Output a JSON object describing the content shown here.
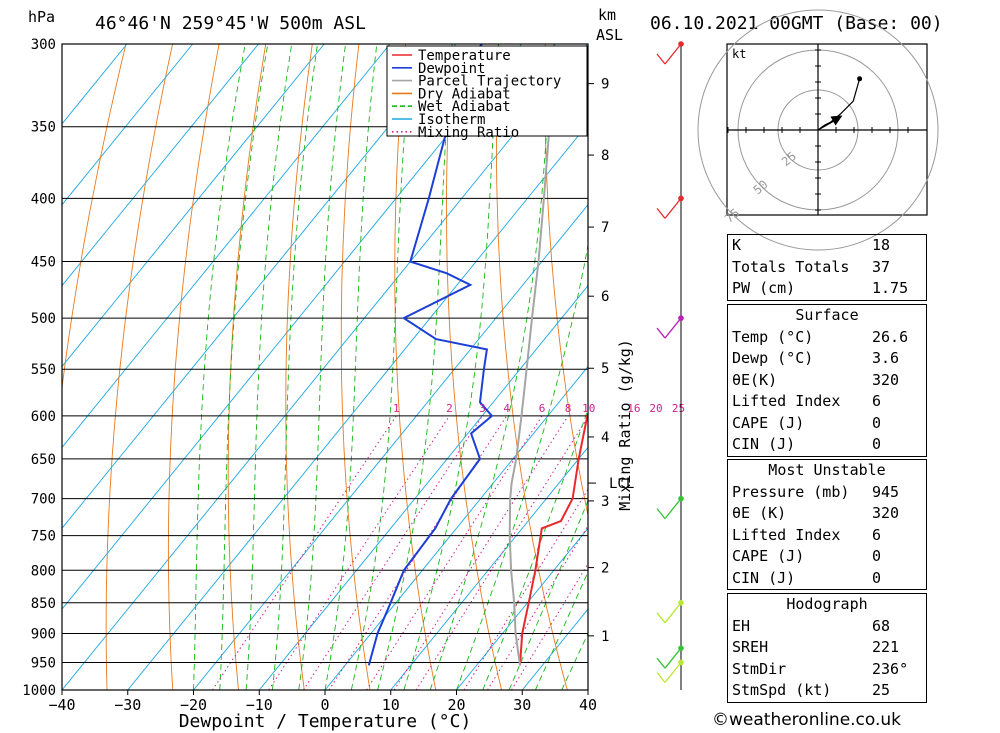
{
  "header": {
    "units_hpa": "hPa",
    "location": "46°46'N 259°45'W 500m ASL",
    "km_label": "km",
    "asl_label": "ASL",
    "datetime": "06.10.2021 00GMT (Base: 00)"
  },
  "chart_data": {
    "type": "line",
    "title": "",
    "xlabel": "Dewpoint / Temperature (°C)",
    "ylabel": "hPa",
    "secondary_ylabel": "Mixing Ratio (g/kg)",
    "xlim": [
      -40,
      40
    ],
    "ylim": [
      1000,
      300
    ],
    "pressure_ticks": [
      300,
      350,
      400,
      450,
      500,
      550,
      600,
      650,
      700,
      750,
      800,
      850,
      900,
      950,
      1000
    ],
    "x_ticks": [
      -40,
      -30,
      -20,
      -10,
      0,
      10,
      20,
      30,
      40
    ],
    "x_tick_labels": [
      "−40",
      "−30",
      "−20",
      "−10",
      "0",
      "10",
      "20",
      "30",
      "40"
    ],
    "km_ticks": [
      {
        "label": "1",
        "p": 904
      },
      {
        "label": "2",
        "p": 796
      },
      {
        "label": "3",
        "p": 703
      },
      {
        "label": "4",
        "p": 624
      },
      {
        "label": "5",
        "p": 549
      },
      {
        "label": "6",
        "p": 480
      },
      {
        "label": "7",
        "p": 422
      },
      {
        "label": "8",
        "p": 369
      },
      {
        "label": "9",
        "p": 323
      }
    ],
    "lcl": {
      "label": "LCL",
      "p": 680
    },
    "mixing_ratio_labels": [
      "1",
      "2",
      "3",
      "4",
      "6",
      "8",
      "10",
      "16",
      "20",
      "25"
    ],
    "mixing_ratio_values": [
      1,
      2,
      3,
      4,
      6,
      8,
      10,
      16,
      20,
      25
    ],
    "legend": [
      {
        "name": "Temperature",
        "color": "#e8282d",
        "style": "solid"
      },
      {
        "name": "Dewpoint",
        "color": "#1c3fd6",
        "style": "solid"
      },
      {
        "name": "Parcel Trajectory",
        "color": "#a5a5a5",
        "style": "solid"
      },
      {
        "name": "Dry Adiabat",
        "color": "#e87a1e",
        "style": "solid"
      },
      {
        "name": "Wet Adiabat",
        "color": "#16b816",
        "style": "dashed"
      },
      {
        "name": "Isotherm",
        "color": "#1da7e3",
        "style": "solid"
      },
      {
        "name": "Mixing Ratio",
        "color": "#d0218f",
        "style": "dotted"
      }
    ],
    "legend_position": "top-right",
    "series": [
      {
        "name": "Temperature",
        "color": "#e8282d",
        "points": [
          {
            "p": 955,
            "t": 26.6
          },
          {
            "p": 900,
            "t": 23.0
          },
          {
            "p": 850,
            "t": 20.2
          },
          {
            "p": 800,
            "t": 17.2
          },
          {
            "p": 740,
            "t": 13.0
          },
          {
            "p": 730,
            "t": 15.0
          },
          {
            "p": 700,
            "t": 14.0
          },
          {
            "p": 650,
            "t": 10.0
          },
          {
            "p": 600,
            "t": 6.0
          },
          {
            "p": 590,
            "t": 5.5
          },
          {
            "p": 560,
            "t": 2.0
          },
          {
            "p": 530,
            "t": 0.5
          },
          {
            "p": 500,
            "t": -1.5
          },
          {
            "p": 470,
            "t": -4.5
          },
          {
            "p": 460,
            "t": -4.5
          },
          {
            "p": 450,
            "t": -3.5
          },
          {
            "p": 400,
            "t": -10.0
          },
          {
            "p": 350,
            "t": -19.0
          },
          {
            "p": 310,
            "t": -27.0
          },
          {
            "p": 300,
            "t": -28.0
          }
        ]
      },
      {
        "name": "Dewpoint",
        "color": "#1c3fd6",
        "points": [
          {
            "p": 955,
            "t": 3.6
          },
          {
            "p": 900,
            "t": 1.0
          },
          {
            "p": 850,
            "t": -0.8
          },
          {
            "p": 800,
            "t": -2.8
          },
          {
            "p": 740,
            "t": -3.2
          },
          {
            "p": 700,
            "t": -4.5
          },
          {
            "p": 650,
            "t": -5.0
          },
          {
            "p": 620,
            "t": -9.5
          },
          {
            "p": 600,
            "t": -8.5
          },
          {
            "p": 585,
            "t": -12.0
          },
          {
            "p": 550,
            "t": -15.5
          },
          {
            "p": 530,
            "t": -17.5
          },
          {
            "p": 520,
            "t": -26.5
          },
          {
            "p": 500,
            "t": -34.0
          },
          {
            "p": 470,
            "t": -28.0
          },
          {
            "p": 460,
            "t": -33.0
          },
          {
            "p": 450,
            "t": -40.0
          },
          {
            "p": 400,
            "t": -45.0
          },
          {
            "p": 350,
            "t": -51.0
          },
          {
            "p": 320,
            "t": -56.5
          },
          {
            "p": 300,
            "t": -56.0
          }
        ]
      },
      {
        "name": "Parcel Trajectory",
        "color": "#a5a5a5",
        "points": [
          {
            "p": 955,
            "t": 26.6
          },
          {
            "p": 900,
            "t": 22.0
          },
          {
            "p": 850,
            "t": 18.0
          },
          {
            "p": 800,
            "t": 13.5
          },
          {
            "p": 750,
            "t": 9.0
          },
          {
            "p": 700,
            "t": 4.5
          },
          {
            "p": 680,
            "t": 2.8
          },
          {
            "p": 650,
            "t": 0.5
          },
          {
            "p": 600,
            "t": -4.0
          },
          {
            "p": 550,
            "t": -9.0
          },
          {
            "p": 500,
            "t": -14.5
          },
          {
            "p": 450,
            "t": -20.5
          },
          {
            "p": 400,
            "t": -27.5
          },
          {
            "p": 350,
            "t": -35.5
          },
          {
            "p": 300,
            "t": -45.0
          }
        ]
      }
    ]
  },
  "wind_profile": {
    "markers": [
      {
        "p": 300,
        "color": "#e8282d"
      },
      {
        "p": 400,
        "color": "#e8282d"
      },
      {
        "p": 500,
        "color": "#b820b8"
      },
      {
        "p": 700,
        "color": "#33c433"
      },
      {
        "p": 850,
        "color": "#b8e830"
      },
      {
        "p": 925,
        "color": "#33c433"
      },
      {
        "p": 950,
        "color": "#b8e830"
      }
    ]
  },
  "hodograph": {
    "unit": "kt",
    "ring_labels": [
      "25",
      "50",
      "75"
    ],
    "points": [
      [
        0,
        0
      ],
      [
        4,
        3
      ],
      [
        8,
        5
      ],
      [
        14,
        10
      ],
      [
        22,
        18
      ],
      [
        26,
        32
      ]
    ],
    "storm_motion": [
      8,
      8
    ]
  },
  "indices": {
    "rows": [
      {
        "label": "K",
        "value": "18"
      },
      {
        "label": "Totals Totals",
        "value": "37"
      },
      {
        "label": "PW (cm)",
        "value": "1.75"
      }
    ]
  },
  "surface": {
    "title": "Surface",
    "rows": [
      {
        "label": "Temp (°C)",
        "value": "26.6"
      },
      {
        "label": "Dewp (°C)",
        "value": "3.6"
      },
      {
        "label": "θE(K)",
        "value": "320"
      },
      {
        "label": "Lifted Index",
        "value": "6"
      },
      {
        "label": "CAPE (J)",
        "value": "0"
      },
      {
        "label": "CIN (J)",
        "value": "0"
      }
    ]
  },
  "most_unstable": {
    "title": "Most Unstable",
    "rows": [
      {
        "label": "Pressure (mb)",
        "value": "945"
      },
      {
        "label": "θE (K)",
        "value": "320"
      },
      {
        "label": "Lifted Index",
        "value": "6"
      },
      {
        "label": "CAPE (J)",
        "value": "0"
      },
      {
        "label": "CIN (J)",
        "value": "0"
      }
    ]
  },
  "hodograph_table": {
    "title": "Hodograph",
    "rows": [
      {
        "label": "EH",
        "value": "68"
      },
      {
        "label": "SREH",
        "value": "221"
      },
      {
        "label": "StmDir",
        "value": "236°"
      },
      {
        "label": "StmSpd (kt)",
        "value": "25"
      }
    ]
  },
  "footer": {
    "copyright": "©weatheronline.co.uk"
  }
}
